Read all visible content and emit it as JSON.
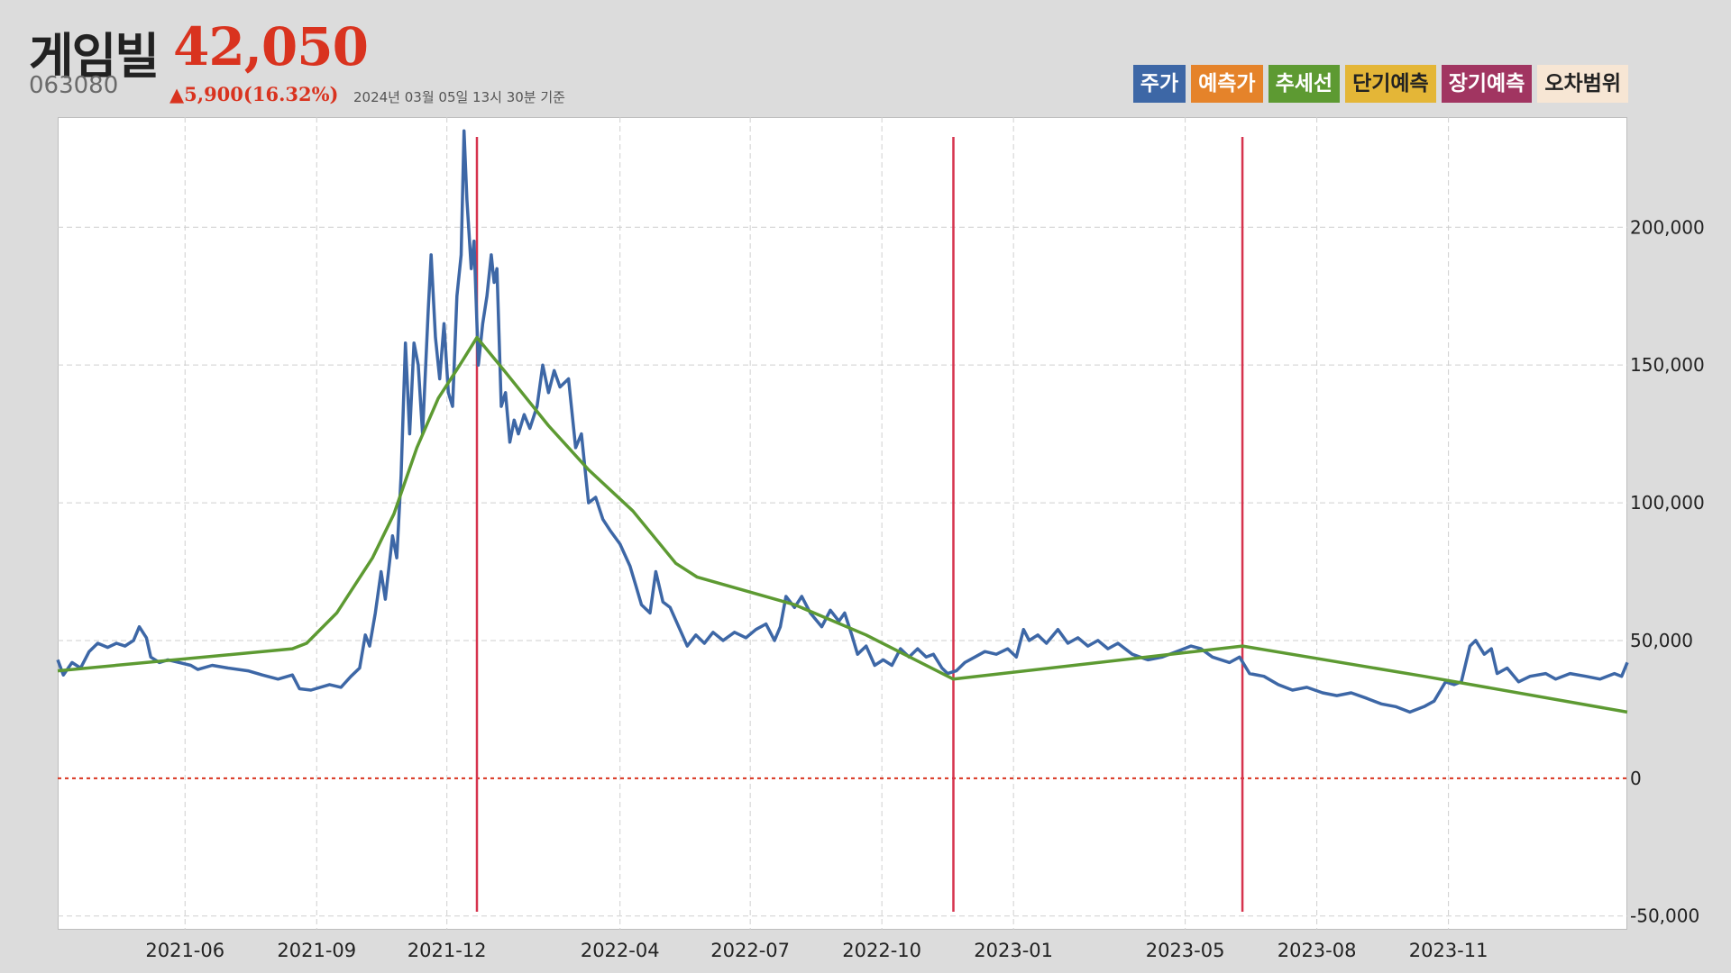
{
  "header": {
    "name": "게임빌",
    "price": "42,050",
    "code": "063080",
    "change": "▲5,900(16.32%)",
    "timestamp": "2024년 03월 05일 13시 30분 기준"
  },
  "legend": [
    {
      "label": "주가",
      "color": "#3d67a6",
      "text_color": "#ffffff"
    },
    {
      "label": "예측가",
      "color": "#e5832a",
      "text_color": "#ffffff"
    },
    {
      "label": "추세선",
      "color": "#5d9a32",
      "text_color": "#ffffff"
    },
    {
      "label": "단기예측",
      "color": "#e4b637",
      "text_color": "#222222"
    },
    {
      "label": "장기예측",
      "color": "#a13561",
      "text_color": "#ffffff"
    },
    {
      "label": "오차범위",
      "color": "#f7e6d4",
      "text_color": "#222222"
    }
  ],
  "chart_data": {
    "type": "line",
    "x_range": [
      "2021-03-04",
      "2024-03-05"
    ],
    "ylim": [
      -55000,
      240000
    ],
    "yticks": [
      -50000,
      0,
      50000,
      100000,
      150000,
      200000
    ],
    "ytick_labels": [
      "-50,000",
      "0",
      "50,000",
      "100,000",
      "150,000",
      "200,000"
    ],
    "xticks": [
      "2021-06-01",
      "2021-09-01",
      "2021-12-01",
      "2022-04-01",
      "2022-07-01",
      "2022-10-01",
      "2023-01-01",
      "2023-05-01",
      "2023-08-01",
      "2023-11-01"
    ],
    "xtick_labels": [
      "2021-06",
      "2021-09",
      "2021-12",
      "2022-04",
      "2022-07",
      "2022-10",
      "2023-01",
      "2023-05",
      "2023-08",
      "2023-11"
    ],
    "grid": true,
    "zero_line": {
      "value": 0,
      "color": "#d9331f",
      "style": "dotted"
    },
    "vertical_markers": {
      "dates": [
        "2021-12-22",
        "2022-11-20",
        "2023-06-10"
      ],
      "color": "#d6334d"
    },
    "series": [
      {
        "name": "주가",
        "color": "#3d67a6",
        "points": [
          [
            "2021-03-04",
            43000
          ],
          [
            "2021-03-08",
            37500
          ],
          [
            "2021-03-14",
            42000
          ],
          [
            "2021-03-20",
            40000
          ],
          [
            "2021-03-26",
            46000
          ],
          [
            "2021-04-01",
            49000
          ],
          [
            "2021-04-08",
            47500
          ],
          [
            "2021-04-14",
            49000
          ],
          [
            "2021-04-20",
            48000
          ],
          [
            "2021-04-26",
            50000
          ],
          [
            "2021-04-30",
            55000
          ],
          [
            "2021-05-05",
            51000
          ],
          [
            "2021-05-08",
            44000
          ],
          [
            "2021-05-14",
            42000
          ],
          [
            "2021-05-20",
            43000
          ],
          [
            "2021-05-28",
            42000
          ],
          [
            "2021-06-05",
            41000
          ],
          [
            "2021-06-10",
            39500
          ],
          [
            "2021-06-20",
            41000
          ],
          [
            "2021-07-01",
            40000
          ],
          [
            "2021-07-15",
            39000
          ],
          [
            "2021-07-25",
            37500
          ],
          [
            "2021-08-05",
            36000
          ],
          [
            "2021-08-15",
            37500
          ],
          [
            "2021-08-20",
            32500
          ],
          [
            "2021-08-28",
            32000
          ],
          [
            "2021-09-10",
            34000
          ],
          [
            "2021-09-18",
            33000
          ],
          [
            "2021-09-25",
            37000
          ],
          [
            "2021-10-01",
            40000
          ],
          [
            "2021-10-05",
            52000
          ],
          [
            "2021-10-08",
            48000
          ],
          [
            "2021-10-12",
            60000
          ],
          [
            "2021-10-16",
            75000
          ],
          [
            "2021-10-19",
            65000
          ],
          [
            "2021-10-24",
            88000
          ],
          [
            "2021-10-27",
            80000
          ],
          [
            "2021-10-30",
            110000
          ],
          [
            "2021-11-02",
            158000
          ],
          [
            "2021-11-05",
            125000
          ],
          [
            "2021-11-08",
            158000
          ],
          [
            "2021-11-11",
            150000
          ],
          [
            "2021-11-14",
            125000
          ],
          [
            "2021-11-18",
            170000
          ],
          [
            "2021-11-20",
            190000
          ],
          [
            "2021-11-23",
            160000
          ],
          [
            "2021-11-26",
            145000
          ],
          [
            "2021-11-29",
            165000
          ],
          [
            "2021-12-02",
            140000
          ],
          [
            "2021-12-05",
            135000
          ],
          [
            "2021-12-08",
            175000
          ],
          [
            "2021-12-11",
            190000
          ],
          [
            "2021-12-13",
            235000
          ],
          [
            "2021-12-15",
            210000
          ],
          [
            "2021-12-18",
            185000
          ],
          [
            "2021-12-20",
            195000
          ],
          [
            "2021-12-23",
            150000
          ],
          [
            "2021-12-26",
            165000
          ],
          [
            "2021-12-29",
            175000
          ],
          [
            "2022-01-01",
            190000
          ],
          [
            "2022-01-03",
            180000
          ],
          [
            "2022-01-05",
            185000
          ],
          [
            "2022-01-08",
            135000
          ],
          [
            "2022-01-11",
            140000
          ],
          [
            "2022-01-14",
            122000
          ],
          [
            "2022-01-17",
            130000
          ],
          [
            "2022-01-20",
            125000
          ],
          [
            "2022-01-24",
            132000
          ],
          [
            "2022-01-28",
            127000
          ],
          [
            "2022-02-02",
            135000
          ],
          [
            "2022-02-06",
            150000
          ],
          [
            "2022-02-10",
            140000
          ],
          [
            "2022-02-14",
            148000
          ],
          [
            "2022-02-18",
            142000
          ],
          [
            "2022-02-24",
            145000
          ],
          [
            "2022-03-01",
            120000
          ],
          [
            "2022-03-05",
            125000
          ],
          [
            "2022-03-10",
            100000
          ],
          [
            "2022-03-15",
            102000
          ],
          [
            "2022-03-20",
            94000
          ],
          [
            "2022-03-25",
            90000
          ],
          [
            "2022-04-01",
            85000
          ],
          [
            "2022-04-08",
            77000
          ],
          [
            "2022-04-12",
            70000
          ],
          [
            "2022-04-16",
            63000
          ],
          [
            "2022-04-22",
            60000
          ],
          [
            "2022-04-26",
            75000
          ],
          [
            "2022-05-01",
            64000
          ],
          [
            "2022-05-06",
            62000
          ],
          [
            "2022-05-12",
            55000
          ],
          [
            "2022-05-18",
            48000
          ],
          [
            "2022-05-24",
            52000
          ],
          [
            "2022-05-30",
            49000
          ],
          [
            "2022-06-05",
            53000
          ],
          [
            "2022-06-12",
            50000
          ],
          [
            "2022-06-20",
            53000
          ],
          [
            "2022-06-28",
            51000
          ],
          [
            "2022-07-05",
            54000
          ],
          [
            "2022-07-12",
            56000
          ],
          [
            "2022-07-18",
            50000
          ],
          [
            "2022-07-22",
            55000
          ],
          [
            "2022-07-26",
            66000
          ],
          [
            "2022-08-01",
            62000
          ],
          [
            "2022-08-06",
            66000
          ],
          [
            "2022-08-12",
            60000
          ],
          [
            "2022-08-20",
            55000
          ],
          [
            "2022-08-26",
            61000
          ],
          [
            "2022-09-01",
            57000
          ],
          [
            "2022-09-05",
            60000
          ],
          [
            "2022-09-10",
            52000
          ],
          [
            "2022-09-14",
            45000
          ],
          [
            "2022-09-20",
            48000
          ],
          [
            "2022-09-26",
            41000
          ],
          [
            "2022-10-02",
            43000
          ],
          [
            "2022-10-08",
            41000
          ],
          [
            "2022-10-14",
            47000
          ],
          [
            "2022-10-20",
            44000
          ],
          [
            "2022-10-26",
            47000
          ],
          [
            "2022-11-01",
            44000
          ],
          [
            "2022-11-06",
            45000
          ],
          [
            "2022-11-12",
            40000
          ],
          [
            "2022-11-16",
            38000
          ],
          [
            "2022-11-22",
            39000
          ],
          [
            "2022-11-28",
            42000
          ],
          [
            "2022-12-05",
            44000
          ],
          [
            "2022-12-12",
            46000
          ],
          [
            "2022-12-20",
            45000
          ],
          [
            "2022-12-28",
            47000
          ],
          [
            "2023-01-03",
            44000
          ],
          [
            "2023-01-08",
            54000
          ],
          [
            "2023-01-12",
            50000
          ],
          [
            "2023-01-18",
            52000
          ],
          [
            "2023-01-24",
            49000
          ],
          [
            "2023-02-01",
            54000
          ],
          [
            "2023-02-08",
            49000
          ],
          [
            "2023-02-15",
            51000
          ],
          [
            "2023-02-22",
            48000
          ],
          [
            "2023-03-01",
            50000
          ],
          [
            "2023-03-08",
            47000
          ],
          [
            "2023-03-15",
            49000
          ],
          [
            "2023-03-25",
            45000
          ],
          [
            "2023-04-05",
            43000
          ],
          [
            "2023-04-15",
            44000
          ],
          [
            "2023-04-25",
            46000
          ],
          [
            "2023-05-05",
            48000
          ],
          [
            "2023-05-12",
            47000
          ],
          [
            "2023-05-20",
            44000
          ],
          [
            "2023-06-01",
            42000
          ],
          [
            "2023-06-08",
            44000
          ],
          [
            "2023-06-15",
            38000
          ],
          [
            "2023-06-25",
            37000
          ],
          [
            "2023-07-05",
            34000
          ],
          [
            "2023-07-15",
            32000
          ],
          [
            "2023-07-25",
            33000
          ],
          [
            "2023-08-05",
            31000
          ],
          [
            "2023-08-15",
            30000
          ],
          [
            "2023-08-25",
            31000
          ],
          [
            "2023-09-05",
            29000
          ],
          [
            "2023-09-15",
            27000
          ],
          [
            "2023-09-25",
            26000
          ],
          [
            "2023-10-05",
            24000
          ],
          [
            "2023-10-15",
            26000
          ],
          [
            "2023-10-22",
            28000
          ],
          [
            "2023-10-30",
            35000
          ],
          [
            "2023-11-05",
            34000
          ],
          [
            "2023-11-10",
            35000
          ],
          [
            "2023-11-16",
            48000
          ],
          [
            "2023-11-20",
            50000
          ],
          [
            "2023-11-26",
            45000
          ],
          [
            "2023-12-01",
            47000
          ],
          [
            "2023-12-05",
            38000
          ],
          [
            "2023-12-12",
            40000
          ],
          [
            "2023-12-20",
            35000
          ],
          [
            "2023-12-28",
            37000
          ],
          [
            "2024-01-08",
            38000
          ],
          [
            "2024-01-15",
            36000
          ],
          [
            "2024-01-25",
            38000
          ],
          [
            "2024-02-05",
            37000
          ],
          [
            "2024-02-15",
            36000
          ],
          [
            "2024-02-25",
            38000
          ],
          [
            "2024-03-01",
            37000
          ],
          [
            "2024-03-05",
            42050
          ]
        ]
      },
      {
        "name": "추세선",
        "color": "#5d9a32",
        "points": [
          [
            "2021-03-04",
            39000
          ],
          [
            "2021-08-15",
            47000
          ],
          [
            "2021-08-25",
            49000
          ],
          [
            "2021-09-15",
            60000
          ],
          [
            "2021-10-10",
            80000
          ],
          [
            "2021-10-25",
            96000
          ],
          [
            "2021-11-10",
            120000
          ],
          [
            "2021-11-25",
            138000
          ],
          [
            "2021-12-10",
            150000
          ],
          [
            "2021-12-22",
            160000
          ],
          [
            "2022-01-10",
            148000
          ],
          [
            "2022-02-10",
            128000
          ],
          [
            "2022-03-10",
            112000
          ],
          [
            "2022-04-10",
            97000
          ],
          [
            "2022-05-10",
            78000
          ],
          [
            "2022-05-25",
            73000
          ],
          [
            "2022-08-01",
            63000
          ],
          [
            "2022-09-20",
            52000
          ],
          [
            "2022-11-20",
            36000
          ],
          [
            "2023-06-10",
            48000
          ],
          [
            "2023-10-15",
            37000
          ],
          [
            "2024-03-05",
            24000
          ]
        ]
      }
    ]
  }
}
